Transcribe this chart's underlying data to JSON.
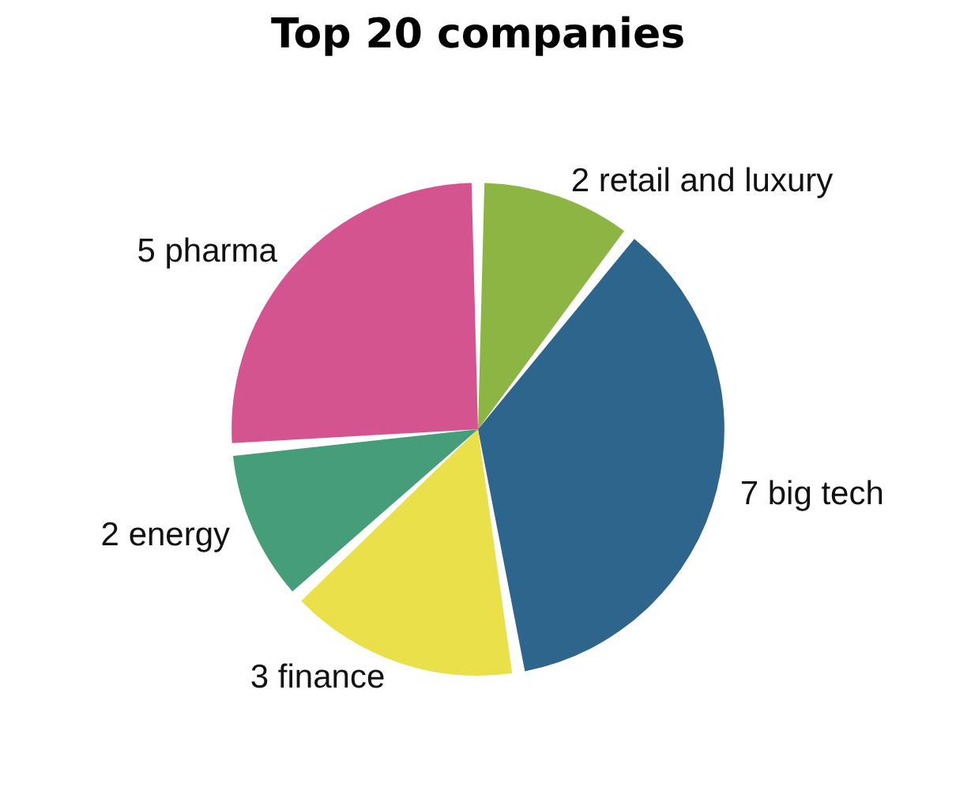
{
  "chart_data": {
    "type": "pie",
    "title": "Top 20 companies",
    "categories": [
      "2 retail and luxury",
      "7 big tech",
      "3 finance",
      "2 energy",
      "5 pharma"
    ],
    "values": [
      2,
      7,
      3,
      2,
      5
    ],
    "colors": [
      "#8db543",
      "#2d658c",
      "#e9e04a",
      "#459e79",
      "#d4548f"
    ],
    "legend": false
  }
}
